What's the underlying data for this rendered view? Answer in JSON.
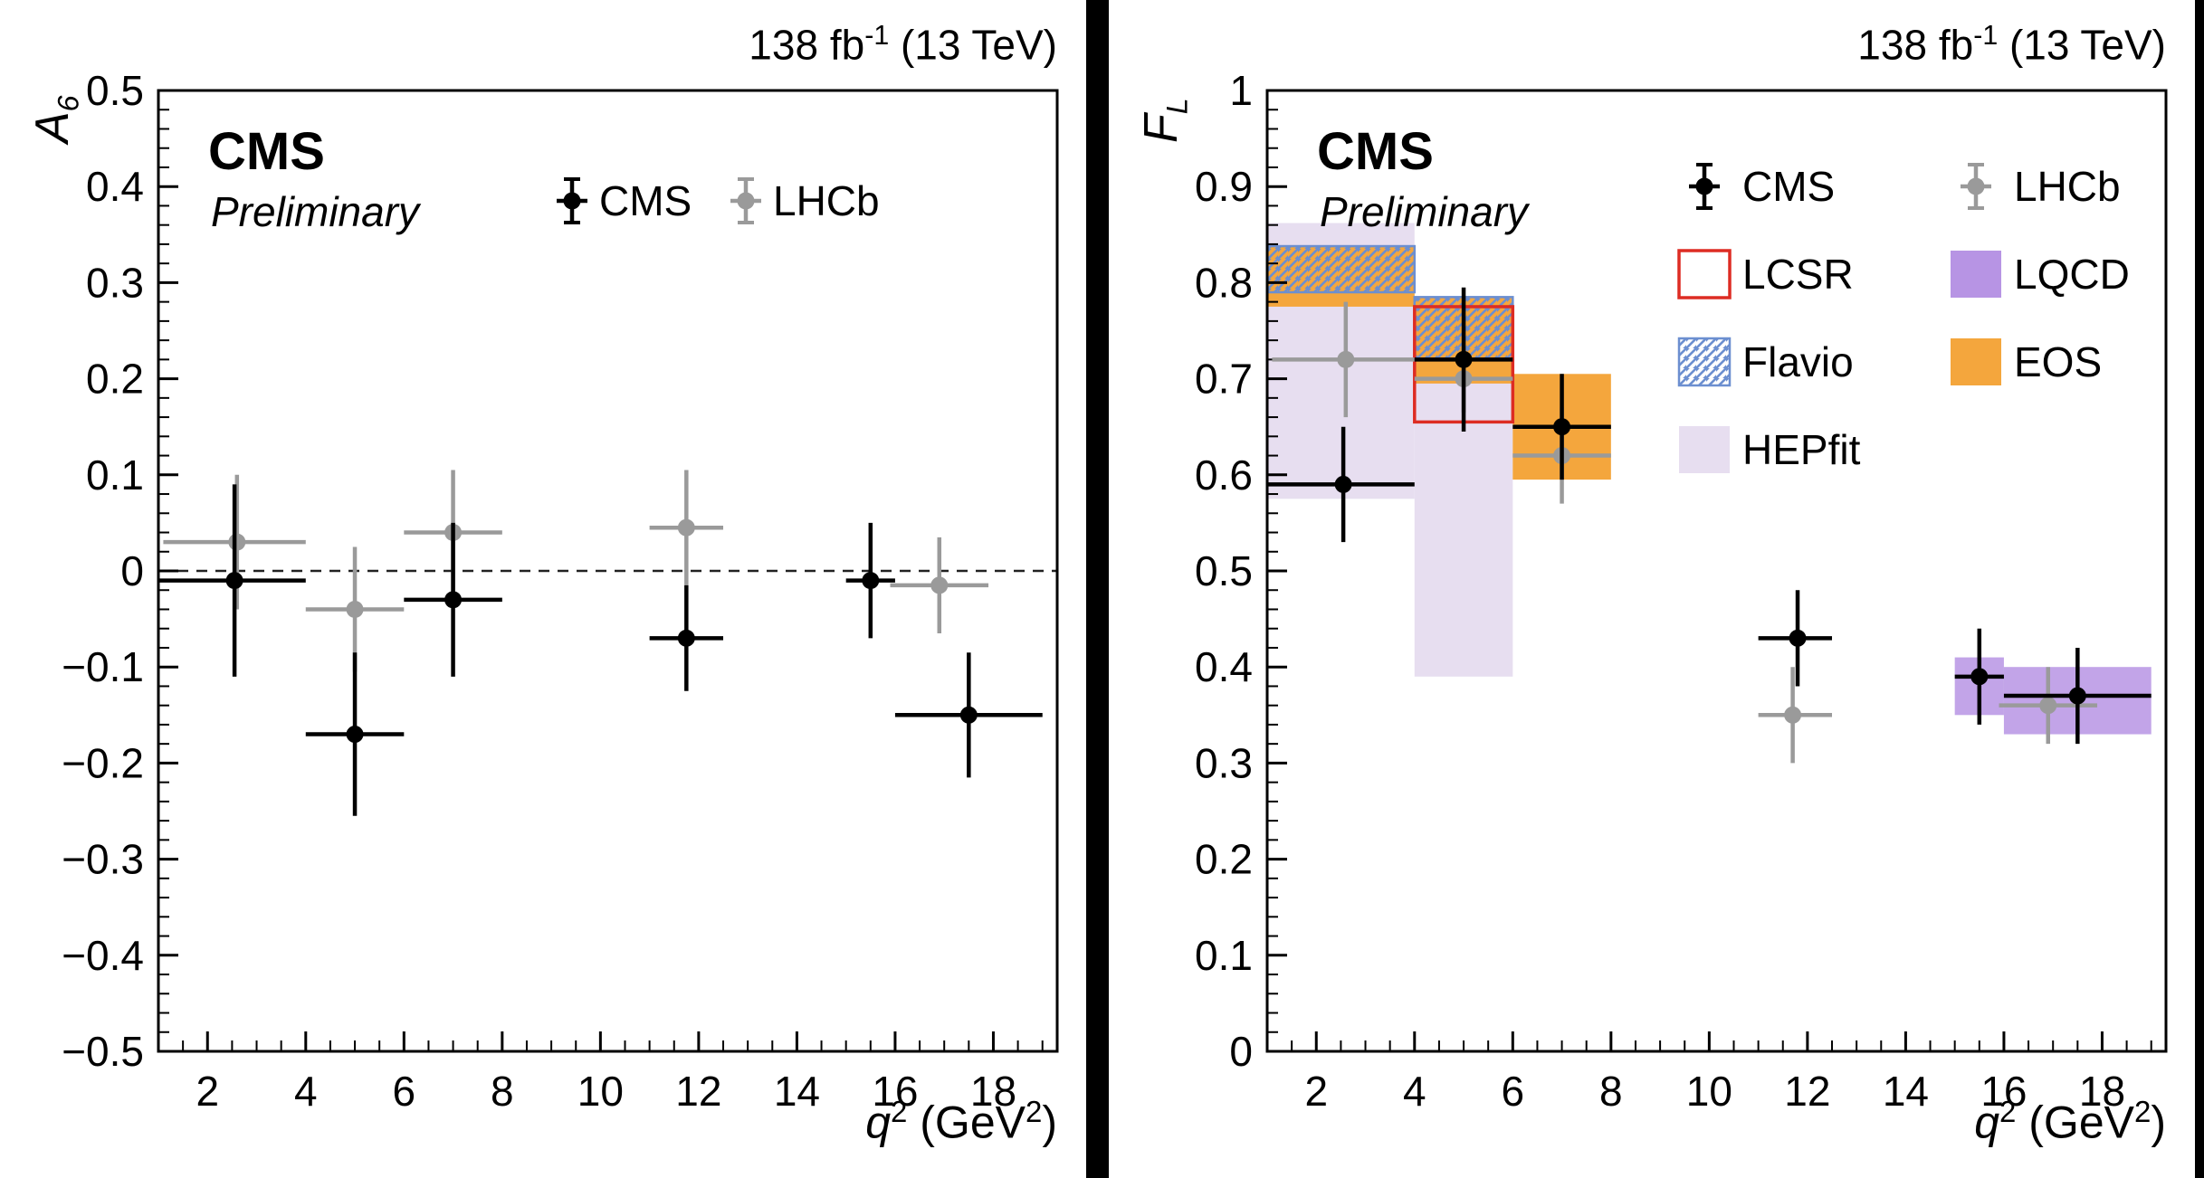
{
  "figure": {
    "lumi_prefix": "138 fb",
    "lumi_sup": "-1",
    "lumi_suffix": " (13 TeV)",
    "experiment": "CMS",
    "status": "Preliminary",
    "colors": {
      "cms_marker": "#000000",
      "lhcb_marker": "#9a9a9a",
      "lcsr": "#dd2c23",
      "lqcd": "#b794e4",
      "flavio": "#6c8fd0",
      "eos": "#f4a63d",
      "hepfit": "#e7def0"
    }
  },
  "chart_data": [
    {
      "type": "scatter",
      "panel": "left",
      "title": "",
      "ylabel": {
        "base": "A",
        "sub": "6"
      },
      "xlabel": {
        "pre": "q",
        "sup": "2",
        "mid": " (GeV",
        "sup2": "2",
        "post": ")"
      },
      "xlim": [
        1,
        19.3
      ],
      "ylim": [
        -0.5,
        0.5
      ],
      "xticks": {
        "values": [
          2,
          4,
          6,
          8,
          10,
          12,
          14,
          16,
          18
        ],
        "labels": [
          "2",
          "4",
          "6",
          "8",
          "10",
          "12",
          "14",
          "16",
          "18"
        ]
      },
      "yticks": {
        "values": [
          -0.5,
          -0.4,
          -0.3,
          -0.2,
          -0.1,
          0,
          0.1,
          0.2,
          0.3,
          0.4,
          0.5
        ],
        "labels": [
          "−0.5",
          "−0.4",
          "−0.3",
          "−0.2",
          "−0.1",
          "0",
          "0.1",
          "0.2",
          "0.3",
          "0.4",
          "0.5"
        ]
      },
      "minor_x_step": 0.5,
      "minor_y_step": 0.02,
      "zero_line": true,
      "grid": false,
      "legend_position": "top-center",
      "legend": {
        "entries": [
          {
            "label": "CMS",
            "swatch": "marker",
            "color": "#000000",
            "col": 0,
            "row": 0
          },
          {
            "label": "LHCb",
            "swatch": "marker",
            "color": "#9a9a9a",
            "col": 1,
            "row": 0
          }
        ]
      },
      "series": [
        {
          "name": "CMS",
          "color": "#000000",
          "points": [
            {
              "x": 2.55,
              "xlo": 1.0,
              "xhi": 4.0,
              "y": -0.01,
              "ey": 0.1
            },
            {
              "x": 5.0,
              "xlo": 4.0,
              "xhi": 6.0,
              "y": -0.17,
              "ey": 0.085
            },
            {
              "x": 7.0,
              "xlo": 6.0,
              "xhi": 8.0,
              "y": -0.03,
              "ey": 0.08
            },
            {
              "x": 11.75,
              "xlo": 11.0,
              "xhi": 12.5,
              "y": -0.07,
              "ey": 0.055
            },
            {
              "x": 15.5,
              "xlo": 15.0,
              "xhi": 16.0,
              "y": -0.01,
              "ey": 0.06
            },
            {
              "x": 17.5,
              "xlo": 16.0,
              "xhi": 19.0,
              "y": -0.15,
              "ey": 0.065
            }
          ]
        },
        {
          "name": "LHCb",
          "color": "#9a9a9a",
          "points": [
            {
              "x": 2.6,
              "xlo": 1.1,
              "xhi": 4.0,
              "y": 0.03,
              "ey": 0.07
            },
            {
              "x": 5.0,
              "xlo": 4.0,
              "xhi": 6.0,
              "y": -0.04,
              "ey": 0.065
            },
            {
              "x": 7.0,
              "xlo": 6.0,
              "xhi": 8.0,
              "y": 0.04,
              "ey": 0.065
            },
            {
              "x": 11.75,
              "xlo": 11.0,
              "xhi": 12.5,
              "y": 0.045,
              "ey": 0.06
            },
            {
              "x": 16.9,
              "xlo": 15.9,
              "xhi": 17.9,
              "y": -0.015,
              "ey": 0.05
            }
          ]
        }
      ]
    },
    {
      "type": "scatter",
      "panel": "right",
      "title": "",
      "ylabel": {
        "base": "F",
        "sub": "L"
      },
      "xlabel": {
        "pre": "q",
        "sup": "2",
        "mid": " (GeV",
        "sup2": "2",
        "post": ")"
      },
      "xlim": [
        1,
        19.3
      ],
      "ylim": [
        0,
        1
      ],
      "xticks": {
        "values": [
          2,
          4,
          6,
          8,
          10,
          12,
          14,
          16,
          18
        ],
        "labels": [
          "2",
          "4",
          "6",
          "8",
          "10",
          "12",
          "14",
          "16",
          "18"
        ]
      },
      "yticks": {
        "values": [
          0,
          0.1,
          0.2,
          0.3,
          0.4,
          0.5,
          0.6,
          0.7,
          0.8,
          0.9,
          1
        ],
        "labels": [
          "0",
          "0.1",
          "0.2",
          "0.3",
          "0.4",
          "0.5",
          "0.6",
          "0.7",
          "0.8",
          "0.9",
          "1"
        ]
      },
      "minor_x_step": 0.5,
      "minor_y_step": 0.02,
      "zero_line": false,
      "grid": false,
      "legend_position": "top-right",
      "legend": {
        "entries": [
          {
            "label": "CMS",
            "swatch": "marker",
            "color": "#000000",
            "col": 0,
            "row": 0
          },
          {
            "label": "LHCb",
            "swatch": "marker",
            "color": "#9a9a9a",
            "col": 1,
            "row": 0
          },
          {
            "label": "LCSR",
            "swatch": "open-box",
            "color": "#dd2c23",
            "col": 0,
            "row": 1
          },
          {
            "label": "LQCD",
            "swatch": "fill-box",
            "color": "#b794e4",
            "col": 1,
            "row": 1
          },
          {
            "label": "Flavio",
            "swatch": "hatch-box",
            "color": "#6c8fd0",
            "col": 0,
            "row": 2
          },
          {
            "label": "EOS",
            "swatch": "fill-box",
            "color": "#f4a63d",
            "col": 1,
            "row": 2
          },
          {
            "label": "HEPfit",
            "swatch": "fill-box",
            "color": "#e7def0",
            "col": 0,
            "row": 3
          }
        ]
      },
      "band_styles": {
        "HEPfit": {
          "fill": "#e7def0"
        },
        "EOS": {
          "fill": "#f4a63d"
        },
        "Flavio": {
          "hatch": true,
          "stroke": "#6c8fd0"
        },
        "LCSR": {
          "stroke": "#dd2c23"
        },
        "LQCD": {
          "fill": "#b794e4",
          "opacity": 0.85
        }
      },
      "bands": [
        {
          "name": "HEPfit",
          "x1": 1,
          "x2": 4,
          "y1": 0.575,
          "y2": 0.862
        },
        {
          "name": "HEPfit",
          "x1": 4,
          "x2": 6,
          "y1": 0.39,
          "y2": 0.785
        },
        {
          "name": "EOS",
          "x1": 1,
          "x2": 4,
          "y1": 0.775,
          "y2": 0.838
        },
        {
          "name": "EOS",
          "x1": 4,
          "x2": 6,
          "y1": 0.695,
          "y2": 0.785
        },
        {
          "name": "EOS",
          "x1": 6,
          "x2": 8,
          "y1": 0.595,
          "y2": 0.705
        },
        {
          "name": "Flavio",
          "x1": 1,
          "x2": 4,
          "y1": 0.79,
          "y2": 0.838
        },
        {
          "name": "Flavio",
          "x1": 4,
          "x2": 6,
          "y1": 0.72,
          "y2": 0.785
        },
        {
          "name": "LCSR",
          "x1": 4,
          "x2": 6,
          "y1": 0.655,
          "y2": 0.775
        },
        {
          "name": "LQCD",
          "x1": 15,
          "x2": 16,
          "y1": 0.35,
          "y2": 0.41
        },
        {
          "name": "LQCD",
          "x1": 16,
          "x2": 19,
          "y1": 0.33,
          "y2": 0.4
        }
      ],
      "series": [
        {
          "name": "CMS",
          "color": "#000000",
          "points": [
            {
              "x": 2.55,
              "xlo": 1.0,
              "xhi": 4.0,
              "y": 0.59,
              "ey": 0.06
            },
            {
              "x": 5.0,
              "xlo": 4.0,
              "xhi": 6.0,
              "y": 0.72,
              "ey": 0.075
            },
            {
              "x": 7.0,
              "xlo": 6.0,
              "xhi": 8.0,
              "y": 0.65,
              "ey": 0.055
            },
            {
              "x": 11.8,
              "xlo": 11.0,
              "xhi": 12.5,
              "y": 0.43,
              "ey": 0.05
            },
            {
              "x": 15.5,
              "xlo": 15.0,
              "xhi": 16.0,
              "y": 0.39,
              "ey": 0.05
            },
            {
              "x": 17.5,
              "xlo": 16.0,
              "xhi": 19.0,
              "y": 0.37,
              "ey": 0.05
            }
          ]
        },
        {
          "name": "LHCb",
          "color": "#9a9a9a",
          "points": [
            {
              "x": 2.6,
              "xlo": 1.1,
              "xhi": 4.0,
              "y": 0.72,
              "ey": 0.06
            },
            {
              "x": 5.0,
              "xlo": 4.0,
              "xhi": 6.0,
              "y": 0.7,
              "ey": 0.035
            },
            {
              "x": 7.0,
              "xlo": 6.0,
              "xhi": 8.0,
              "y": 0.62,
              "ey": 0.05
            },
            {
              "x": 11.7,
              "xlo": 11.0,
              "xhi": 12.5,
              "y": 0.35,
              "ey": 0.05
            },
            {
              "x": 16.9,
              "xlo": 15.9,
              "xhi": 17.9,
              "y": 0.36,
              "ey": 0.04
            }
          ]
        }
      ]
    }
  ]
}
